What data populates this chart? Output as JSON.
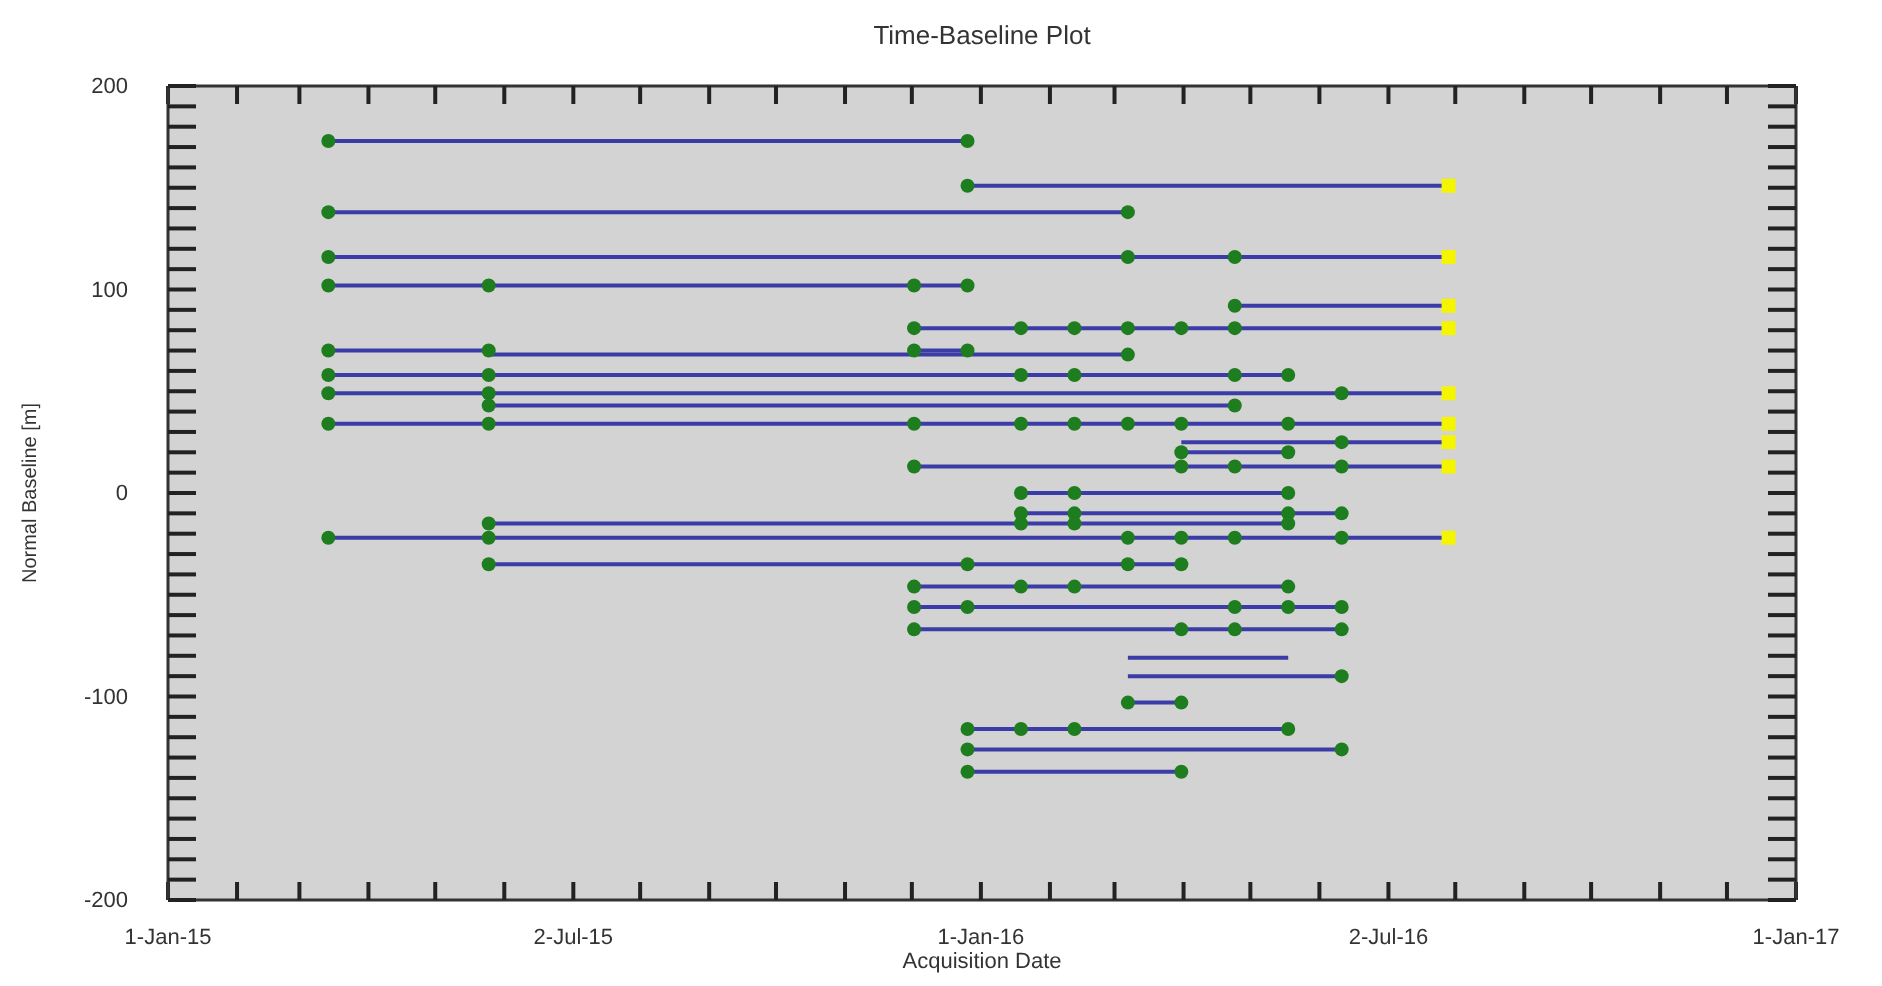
{
  "chart_data": {
    "type": "line",
    "title": "Time-Baseline Plot",
    "xlabel": "Acquisition Date",
    "ylabel": "Normal Baseline [m]",
    "xlim": [
      "2015-01-01",
      "2017-01-01"
    ],
    "xticks": [
      {
        "value": "2015-01-01",
        "label": "1-Jan-15"
      },
      {
        "value": "2015-02-01",
        "label": null
      },
      {
        "value": "2015-03-01",
        "label": null
      },
      {
        "value": "2015-04-01",
        "label": null
      },
      {
        "value": "2015-05-01",
        "label": null
      },
      {
        "value": "2015-06-01",
        "label": null
      },
      {
        "value": "2015-07-02",
        "label": "2-Jul-15"
      },
      {
        "value": "2015-08-01",
        "label": null
      },
      {
        "value": "2015-09-01",
        "label": null
      },
      {
        "value": "2015-10-01",
        "label": null
      },
      {
        "value": "2015-11-01",
        "label": null
      },
      {
        "value": "2015-12-01",
        "label": null
      },
      {
        "value": "2016-01-01",
        "label": "1-Jan-16"
      },
      {
        "value": "2016-02-01",
        "label": null
      },
      {
        "value": "2016-03-01",
        "label": null
      },
      {
        "value": "2016-04-01",
        "label": null
      },
      {
        "value": "2016-05-01",
        "label": null
      },
      {
        "value": "2016-06-01",
        "label": null
      },
      {
        "value": "2016-07-02",
        "label": "2-Jul-16"
      },
      {
        "value": "2016-08-01",
        "label": null
      },
      {
        "value": "2016-09-01",
        "label": null
      },
      {
        "value": "2016-10-01",
        "label": null
      },
      {
        "value": "2016-11-01",
        "label": null
      },
      {
        "value": "2016-12-01",
        "label": null
      },
      {
        "value": "2017-01-01",
        "label": "1-Jan-17"
      }
    ],
    "ylim": [
      -200,
      200
    ],
    "yticks": [
      -200,
      {
        "value": -190,
        "label": null
      },
      {
        "value": -180,
        "label": null
      },
      {
        "value": -170,
        "label": null
      },
      {
        "value": -160,
        "label": null
      },
      {
        "value": -150,
        "label": null
      },
      {
        "value": -140,
        "label": null
      },
      {
        "value": -130,
        "label": null
      },
      {
        "value": -120,
        "label": null
      },
      {
        "value": -110,
        "label": null
      },
      -100,
      {
        "value": -90,
        "label": null
      },
      {
        "value": -80,
        "label": null
      },
      {
        "value": -70,
        "label": null
      },
      {
        "value": -60,
        "label": null
      },
      {
        "value": -50,
        "label": null
      },
      {
        "value": -40,
        "label": null
      },
      {
        "value": -30,
        "label": null
      },
      {
        "value": -20,
        "label": null
      },
      {
        "value": -10,
        "label": null
      },
      0,
      {
        "value": 10,
        "label": null
      },
      {
        "value": 20,
        "label": null
      },
      {
        "value": 30,
        "label": null
      },
      {
        "value": 40,
        "label": null
      },
      {
        "value": 50,
        "label": null
      },
      {
        "value": 60,
        "label": null
      },
      {
        "value": 70,
        "label": null
      },
      {
        "value": 80,
        "label": null
      },
      {
        "value": 90,
        "label": null
      },
      100,
      {
        "value": 110,
        "label": null
      },
      {
        "value": 120,
        "label": null
      },
      {
        "value": 130,
        "label": null
      },
      {
        "value": 140,
        "label": null
      },
      {
        "value": 150,
        "label": null
      },
      {
        "value": 160,
        "label": null
      },
      {
        "value": 170,
        "label": null
      },
      {
        "value": 180,
        "label": null
      },
      {
        "value": 190,
        "label": null
      },
      200
    ],
    "series": [
      {
        "color": "#3c3ca8",
        "x": [
          "2015-03-14",
          "2015-12-26"
        ],
        "values": [
          173,
          173
        ]
      },
      {
        "color": "#3c3ca8",
        "x": [
          "2015-12-26",
          "2016-07-29"
        ],
        "values": [
          151,
          151
        ]
      },
      {
        "color": "#3c3ca8",
        "x": [
          "2015-03-14",
          "2016-03-07"
        ],
        "values": [
          138,
          138
        ]
      },
      {
        "color": "#3c3ca8",
        "x": [
          "2015-03-14",
          "2016-07-29"
        ],
        "values": [
          116,
          116
        ]
      },
      {
        "color": "#3c3ca8",
        "x": [
          "2015-03-14",
          "2015-12-26"
        ],
        "values": [
          102,
          102
        ]
      },
      {
        "color": "#3c3ca8",
        "x": [
          "2016-04-24",
          "2016-07-29"
        ],
        "values": [
          92,
          92
        ]
      },
      {
        "color": "#3c3ca8",
        "x": [
          "2015-12-02",
          "2016-07-29"
        ],
        "values": [
          81,
          81
        ]
      },
      {
        "color": "#3c3ca8",
        "x": [
          "2015-03-14",
          "2015-05-25"
        ],
        "values": [
          70,
          70
        ]
      },
      {
        "color": "#3c3ca8",
        "x": [
          "2015-12-02",
          "2015-12-26"
        ],
        "values": [
          70,
          70
        ]
      },
      {
        "color": "#3c3ca8",
        "x": [
          "2015-05-25",
          "2016-03-07"
        ],
        "values": [
          68,
          68
        ]
      },
      {
        "color": "#3c3ca8",
        "x": [
          "2015-03-14",
          "2016-05-18"
        ],
        "values": [
          58,
          58
        ]
      },
      {
        "color": "#3c3ca8",
        "x": [
          "2015-03-14",
          "2016-07-29"
        ],
        "values": [
          49,
          49
        ]
      },
      {
        "color": "#3c3ca8",
        "x": [
          "2015-05-25",
          "2016-04-24"
        ],
        "values": [
          43,
          43
        ]
      },
      {
        "color": "#3c3ca8",
        "x": [
          "2015-03-14",
          "2016-07-29"
        ],
        "values": [
          34,
          34
        ]
      },
      {
        "color": "#3c3ca8",
        "x": [
          "2016-03-31",
          "2016-07-29"
        ],
        "values": [
          25,
          25
        ]
      },
      {
        "color": "#3c3ca8",
        "x": [
          "2016-03-31",
          "2016-05-18"
        ],
        "values": [
          20,
          20
        ]
      },
      {
        "color": "#3c3ca8",
        "x": [
          "2015-12-02",
          "2016-07-29"
        ],
        "values": [
          13,
          13
        ]
      },
      {
        "color": "#3c3ca8",
        "x": [
          "2016-01-19",
          "2016-05-18"
        ],
        "values": [
          0,
          0
        ]
      },
      {
        "color": "#3c3ca8",
        "x": [
          "2016-01-19",
          "2016-06-11"
        ],
        "values": [
          -10,
          -10
        ]
      },
      {
        "color": "#3c3ca8",
        "x": [
          "2015-05-25",
          "2016-05-18"
        ],
        "values": [
          -15,
          -15
        ]
      },
      {
        "color": "#3c3ca8",
        "x": [
          "2015-03-14",
          "2016-07-29"
        ],
        "values": [
          -22,
          -22
        ]
      },
      {
        "color": "#3c3ca8",
        "x": [
          "2015-05-25",
          "2016-03-31"
        ],
        "values": [
          -35,
          -35
        ]
      },
      {
        "color": "#3c3ca8",
        "x": [
          "2015-12-02",
          "2016-05-18"
        ],
        "values": [
          -46,
          -46
        ]
      },
      {
        "color": "#3c3ca8",
        "x": [
          "2015-12-02",
          "2016-06-11"
        ],
        "values": [
          -56,
          -56
        ]
      },
      {
        "color": "#3c3ca8",
        "x": [
          "2015-12-02",
          "2016-06-11"
        ],
        "values": [
          -67,
          -67
        ]
      },
      {
        "color": "#3c3ca8",
        "x": [
          "2016-03-07",
          "2016-05-18"
        ],
        "values": [
          -81,
          -81
        ]
      },
      {
        "color": "#3c3ca8",
        "x": [
          "2016-03-07",
          "2016-06-11"
        ],
        "values": [
          -90,
          -90
        ]
      },
      {
        "color": "#3c3ca8",
        "x": [
          "2016-03-07",
          "2016-03-31"
        ],
        "values": [
          -103,
          -103
        ]
      },
      {
        "color": "#3c3ca8",
        "x": [
          "2015-12-26",
          "2016-05-18"
        ],
        "values": [
          -116,
          -116
        ]
      },
      {
        "color": "#3c3ca8",
        "x": [
          "2015-12-26",
          "2016-06-11"
        ],
        "values": [
          -126,
          -126
        ]
      },
      {
        "color": "#3c3ca8",
        "x": [
          "2015-12-26",
          "2016-03-31"
        ],
        "values": [
          -137,
          -137
        ]
      },
      {
        "type": "scatter",
        "color": "#1e7d1e",
        "marker": "circle",
        "x": [
          "2015-03-14",
          "2015-12-26",
          "2015-12-26",
          "2015-03-14",
          "2016-03-07",
          "2015-03-14",
          "2016-03-07",
          "2016-04-24",
          "2015-03-14",
          "2015-05-25",
          "2015-12-02",
          "2015-12-26",
          "2016-04-24",
          "2015-12-02",
          "2016-01-19",
          "2016-02-12",
          "2016-03-07",
          "2016-03-31",
          "2016-04-24",
          "2015-03-14",
          "2015-05-25",
          "2015-12-02",
          "2015-12-26",
          "2016-03-07",
          "2015-03-14",
          "2015-05-25",
          "2016-01-19",
          "2016-02-12",
          "2016-04-24",
          "2016-05-18",
          "2015-03-14",
          "2015-05-25",
          "2016-06-11",
          "2015-05-25",
          "2016-04-24",
          "2015-03-14",
          "2015-05-25",
          "2015-12-02",
          "2016-01-19",
          "2016-02-12",
          "2016-03-07",
          "2016-03-31",
          "2016-05-18",
          "2016-06-11",
          "2016-03-31",
          "2016-05-18",
          "2015-12-02",
          "2016-03-31",
          "2016-04-24",
          "2016-06-11",
          "2016-01-19",
          "2016-02-12",
          "2016-05-18",
          "2016-01-19",
          "2016-02-12",
          "2016-05-18",
          "2016-06-11",
          "2015-05-25",
          "2016-01-19",
          "2016-02-12",
          "2016-05-18",
          "2015-03-14",
          "2015-05-25",
          "2016-03-07",
          "2016-03-31",
          "2016-04-24",
          "2016-06-11",
          "2015-05-25",
          "2015-12-26",
          "2016-03-07",
          "2016-03-31",
          "2015-12-02",
          "2016-01-19",
          "2016-02-12",
          "2016-05-18",
          "2015-12-02",
          "2015-12-26",
          "2016-04-24",
          "2016-05-18",
          "2016-06-11",
          "2015-12-02",
          "2016-03-31",
          "2016-04-24",
          "2016-06-11",
          "2016-06-11",
          "2016-03-07",
          "2016-03-31",
          "2015-12-26",
          "2016-01-19",
          "2016-02-12",
          "2016-05-18",
          "2015-12-26",
          "2016-06-11",
          "2015-12-26",
          "2016-03-31"
        ],
        "values": [
          173,
          173,
          151,
          138,
          138,
          116,
          116,
          116,
          102,
          102,
          102,
          102,
          92,
          81,
          81,
          81,
          81,
          81,
          81,
          70,
          70,
          70,
          70,
          68,
          58,
          58,
          58,
          58,
          58,
          58,
          49,
          49,
          49,
          43,
          43,
          34,
          34,
          34,
          34,
          34,
          34,
          34,
          34,
          25,
          20,
          20,
          13,
          13,
          13,
          13,
          0,
          0,
          0,
          -10,
          -10,
          -10,
          -10,
          -15,
          -15,
          -15,
          -15,
          -22,
          -22,
          -22,
          -22,
          -22,
          -22,
          -35,
          -35,
          -35,
          -35,
          -46,
          -46,
          -46,
          -46,
          -56,
          -56,
          -56,
          -56,
          -56,
          -67,
          -67,
          -67,
          -67,
          -90,
          -103,
          -103,
          -116,
          -116,
          -116,
          -116,
          -126,
          -126,
          -137,
          -137
        ]
      },
      {
        "type": "scatter",
        "color": "#f5f500",
        "marker": "square",
        "x": [
          "2016-07-29",
          "2016-07-29",
          "2016-07-29",
          "2016-07-29",
          "2016-07-29",
          "2016-07-29",
          "2016-07-29",
          "2016-07-29",
          "2016-07-29"
        ],
        "values": [
          151,
          116,
          92,
          81,
          49,
          34,
          25,
          13,
          -22
        ]
      }
    ]
  }
}
